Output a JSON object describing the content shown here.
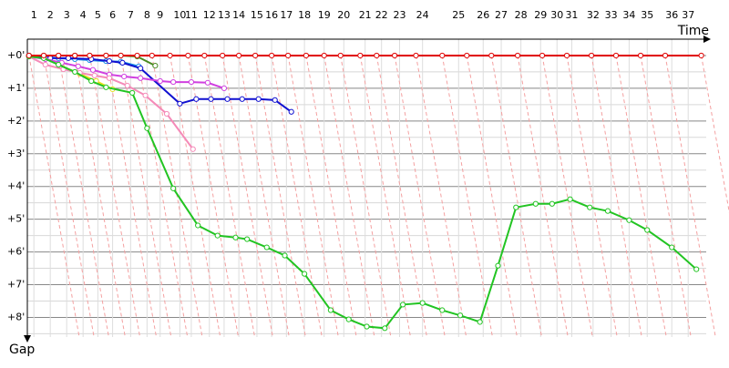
{
  "chart_data": {
    "type": "line",
    "x_label": "Time",
    "y_label": "Gap",
    "xlim": [
      0,
      41.4
    ],
    "ylim": [
      -0.5,
      8.6
    ],
    "xticks": [
      {
        "value": 0.4,
        "label": "1"
      },
      {
        "value": 1.4,
        "label": "2"
      },
      {
        "value": 2.4,
        "label": "3"
      },
      {
        "value": 3.4,
        "label": "4"
      },
      {
        "value": 4.3,
        "label": "5"
      },
      {
        "value": 5.2,
        "label": "6"
      },
      {
        "value": 6.3,
        "label": "7"
      },
      {
        "value": 7.3,
        "label": "8"
      },
      {
        "value": 8.1,
        "label": "9"
      },
      {
        "value": 9.3,
        "label": "10"
      },
      {
        "value": 10.0,
        "label": "11"
      },
      {
        "value": 11.1,
        "label": "12"
      },
      {
        "value": 12.0,
        "label": "13"
      },
      {
        "value": 12.9,
        "label": "14"
      },
      {
        "value": 14.0,
        "label": "15"
      },
      {
        "value": 14.9,
        "label": "16"
      },
      {
        "value": 15.8,
        "label": "17"
      },
      {
        "value": 16.9,
        "label": "18"
      },
      {
        "value": 18.1,
        "label": "19"
      },
      {
        "value": 19.3,
        "label": "20"
      },
      {
        "value": 20.6,
        "label": "21"
      },
      {
        "value": 21.6,
        "label": "22"
      },
      {
        "value": 22.7,
        "label": "23"
      },
      {
        "value": 24.1,
        "label": "24"
      },
      {
        "value": 26.3,
        "label": "25"
      },
      {
        "value": 27.8,
        "label": "26"
      },
      {
        "value": 28.9,
        "label": "27"
      },
      {
        "value": 30.1,
        "label": "28"
      },
      {
        "value": 31.3,
        "label": "29"
      },
      {
        "value": 32.3,
        "label": "30"
      },
      {
        "value": 33.2,
        "label": "31"
      },
      {
        "value": 34.5,
        "label": "32"
      },
      {
        "value": 35.6,
        "label": "33"
      },
      {
        "value": 36.7,
        "label": "34"
      },
      {
        "value": 37.8,
        "label": "35"
      },
      {
        "value": 39.3,
        "label": "36"
      },
      {
        "value": 40.3,
        "label": "37"
      }
    ],
    "yticks": [
      {
        "value": 0,
        "label": "+0'"
      },
      {
        "value": 1,
        "label": "+1'"
      },
      {
        "value": 2,
        "label": "+2'"
      },
      {
        "value": 3,
        "label": "+3'"
      },
      {
        "value": 4,
        "label": "+4'"
      },
      {
        "value": 5,
        "label": "+5'"
      },
      {
        "value": 6,
        "label": "+6'"
      },
      {
        "value": 7,
        "label": "+7'"
      },
      {
        "value": 8,
        "label": "+8'"
      }
    ],
    "y_inverted": true,
    "grid": true,
    "series": [
      {
        "color": "#e00000",
        "x": [
          0.1,
          1.0,
          1.9,
          2.9,
          3.8,
          4.8,
          5.7,
          6.7,
          7.6,
          8.7,
          9.8,
          10.8,
          11.9,
          12.9,
          13.9,
          14.9,
          15.9,
          17.0,
          18.1,
          19.1,
          20.3,
          21.3,
          22.4,
          23.7,
          25.3,
          26.8,
          28.3,
          29.9,
          31.4,
          32.9,
          34.4,
          35.9,
          37.4,
          38.9,
          41.1
        ],
        "values": [
          0,
          0,
          0,
          0,
          0,
          0,
          0,
          0,
          0,
          0,
          0,
          0,
          0,
          0,
          0,
          0,
          0,
          0,
          0,
          0,
          0,
          0,
          0,
          0,
          0,
          0,
          0,
          0,
          0,
          0,
          0,
          0,
          0,
          0,
          0
        ]
      },
      {
        "color": "#22c422",
        "x": [
          0.1,
          1.0,
          1.9,
          2.9,
          3.9,
          4.8,
          6.4,
          7.3,
          8.9,
          10.4,
          11.6,
          12.7,
          13.4,
          14.6,
          15.7,
          16.9,
          18.5,
          19.6,
          20.7,
          21.8,
          22.9,
          24.1,
          25.3,
          26.4,
          27.6,
          28.7,
          29.8,
          31.0,
          32.0,
          33.1,
          34.3,
          35.4,
          36.7,
          37.8,
          39.3,
          40.8
        ],
        "values": [
          0.03,
          0.08,
          0.28,
          0.5,
          0.78,
          0.97,
          1.14,
          2.22,
          4.06,
          5.19,
          5.5,
          5.56,
          5.61,
          5.86,
          6.11,
          6.67,
          7.78,
          8.06,
          8.28,
          8.33,
          7.61,
          7.56,
          7.78,
          7.94,
          8.14,
          6.42,
          4.64,
          4.53,
          4.53,
          4.39,
          4.64,
          4.75,
          5.03,
          5.33,
          5.86,
          6.53
        ]
      },
      {
        "color": "#f58ab8",
        "x": [
          0.1,
          1.1,
          2.2,
          3.2,
          4.1,
          5.0,
          6.1,
          7.2,
          8.5,
          10.1
        ],
        "values": [
          0.03,
          0.28,
          0.42,
          0.53,
          0.61,
          0.69,
          0.92,
          1.22,
          1.78,
          2.86
        ]
      },
      {
        "color": "#d040e0",
        "x": [
          0.1,
          1.1,
          2.1,
          3.1,
          4.0,
          5.0,
          5.9,
          6.9,
          8.1,
          8.9,
          10.0,
          11.0,
          12.0
        ],
        "values": [
          0.03,
          0.11,
          0.22,
          0.33,
          0.44,
          0.58,
          0.64,
          0.69,
          0.78,
          0.81,
          0.81,
          0.83,
          1.0
        ]
      },
      {
        "color": "#1010d0",
        "x": [
          0.1,
          1.4,
          2.5,
          3.9,
          5.0,
          5.8,
          6.9,
          9.3,
          10.3,
          11.2,
          12.2,
          13.1,
          14.1,
          15.1,
          16.1
        ],
        "values": [
          0.03,
          0.08,
          0.08,
          0.11,
          0.17,
          0.22,
          0.39,
          1.47,
          1.33,
          1.33,
          1.33,
          1.33,
          1.33,
          1.36,
          1.72
        ]
      },
      {
        "color": "#e8e020",
        "x": [
          0.1,
          1.0,
          2.1,
          3.2,
          4.2,
          5.2
        ],
        "values": [
          0.03,
          0.06,
          0.33,
          0.56,
          0.78,
          1.03
        ]
      },
      {
        "color": "#1890e8",
        "x": [
          0.1,
          1.0,
          1.9,
          2.9,
          3.8,
          4.8,
          5.7,
          6.8
        ],
        "values": [
          0,
          0.03,
          0.08,
          0.11,
          0.14,
          0.17,
          0.19,
          0.33
        ]
      },
      {
        "color": "#4a8a20",
        "x": [
          0.1,
          1.0,
          1.9,
          2.9,
          3.8,
          4.8,
          5.7,
          6.7,
          7.8
        ],
        "values": [
          0,
          0,
          0,
          0,
          0,
          0,
          0,
          0.03,
          0.31
        ]
      }
    ]
  }
}
